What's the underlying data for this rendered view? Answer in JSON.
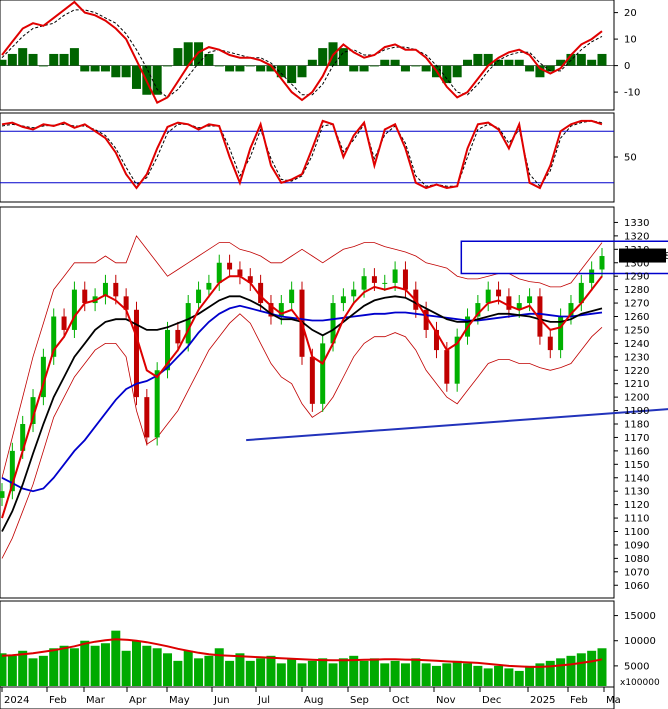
{
  "chart_data": [
    {
      "panel": "MACD",
      "type": "line",
      "yticks": [
        -10,
        0,
        10,
        20
      ],
      "ylim": [
        -16,
        24
      ],
      "series": [],
      "colors": {
        "macd": "#e00000",
        "signal": "#000000",
        "histogram": "#006400"
      },
      "x": [
        0,
        5,
        10,
        15,
        20,
        25,
        30,
        35,
        40,
        45,
        50,
        55,
        60,
        65,
        70,
        75,
        80,
        85,
        90,
        95,
        100,
        105,
        110,
        115,
        120,
        125,
        130,
        135,
        140,
        145,
        150,
        155,
        160,
        165,
        170,
        175,
        180,
        185,
        190,
        195,
        200,
        205,
        210,
        215,
        220,
        225,
        230,
        235,
        240,
        245,
        250,
        255,
        260,
        265,
        270,
        275,
        280,
        285,
        290
      ],
      "macd": [
        4,
        9,
        14,
        16,
        15,
        18,
        21,
        24,
        20,
        19,
        17,
        14,
        10,
        2,
        -6,
        -14,
        -12,
        -6,
        0,
        5,
        7,
        6,
        4,
        3,
        3,
        2,
        0,
        -5,
        -10,
        -13,
        -10,
        -4,
        4,
        8,
        5,
        3,
        4,
        7,
        8,
        6,
        6,
        3,
        -2,
        -8,
        -12,
        -10,
        -5,
        0,
        3,
        5,
        6,
        4,
        -1,
        -3,
        -1,
        4,
        8,
        10,
        13
      ],
      "signal": [
        3,
        7,
        11,
        14,
        15,
        16,
        19,
        21,
        21,
        20,
        18,
        16,
        12,
        6,
        -1,
        -9,
        -12,
        -9,
        -4,
        1,
        5,
        6,
        5,
        4,
        3,
        3,
        1,
        -3,
        -7,
        -11,
        -11,
        -7,
        0,
        5,
        6,
        4,
        4,
        6,
        7,
        7,
        6,
        4,
        0,
        -5,
        -10,
        -11,
        -7,
        -2,
        2,
        4,
        5,
        5,
        1,
        -2,
        -2,
        2,
        6,
        9,
        11
      ]
    },
    {
      "panel": "Stochastic",
      "type": "line",
      "yticks": [
        50
      ],
      "ylim": [
        0,
        100
      ],
      "levels": [
        80,
        20
      ],
      "series": [],
      "colors": {
        "k": "#e00000",
        "d": "#000000",
        "levels": "#0000cc"
      },
      "x": [
        0,
        5,
        10,
        15,
        20,
        25,
        30,
        35,
        40,
        45,
        50,
        55,
        60,
        65,
        70,
        75,
        80,
        85,
        90,
        95,
        100,
        105,
        110,
        115,
        120,
        125,
        130,
        135,
        140,
        145,
        150,
        155,
        160,
        165,
        170,
        175,
        180,
        185,
        190,
        195,
        200,
        205,
        210,
        215,
        220,
        225,
        230,
        235,
        240,
        245,
        250,
        255,
        260,
        265,
        270,
        275,
        280,
        285,
        290
      ],
      "k": [
        88,
        90,
        85,
        82,
        88,
        86,
        90,
        84,
        88,
        80,
        72,
        55,
        30,
        14,
        30,
        60,
        85,
        90,
        88,
        82,
        88,
        86,
        50,
        20,
        60,
        88,
        40,
        20,
        24,
        30,
        60,
        92,
        88,
        50,
        75,
        90,
        40,
        82,
        88,
        60,
        20,
        14,
        18,
        14,
        16,
        60,
        88,
        90,
        82,
        60,
        88,
        20,
        14,
        40,
        80,
        88,
        92,
        92,
        88
      ],
      "d": [
        86,
        88,
        86,
        84,
        86,
        87,
        88,
        86,
        86,
        82,
        75,
        60,
        38,
        18,
        26,
        50,
        78,
        88,
        88,
        84,
        86,
        86,
        60,
        28,
        50,
        82,
        48,
        24,
        22,
        28,
        52,
        86,
        88,
        56,
        70,
        88,
        48,
        76,
        86,
        66,
        28,
        16,
        18,
        16,
        16,
        50,
        82,
        88,
        84,
        66,
        82,
        30,
        16,
        34,
        72,
        86,
        90,
        92,
        90
      ]
    },
    {
      "panel": "Price",
      "type": "candlestick",
      "yticks": [
        1060,
        1070,
        1080,
        1090,
        1100,
        1110,
        1120,
        1130,
        1140,
        1150,
        1160,
        1170,
        1180,
        1190,
        1200,
        1210,
        1220,
        1230,
        1240,
        1250,
        1260,
        1270,
        1280,
        1290,
        1300,
        1310,
        1320,
        1330
      ],
      "ylim": [
        1052,
        1340
      ],
      "last_price_label": "1305.368",
      "last_price": 1305.368,
      "series": [],
      "colors": {
        "up": "#00b000",
        "down": "#c00000",
        "ma_fast": "#dd0000",
        "ma_mid": "#000000",
        "ma_slow": "#0000cc",
        "bands": "#c00000",
        "trend": "#2233bb",
        "box": "#0000cc"
      },
      "x": [
        0,
        5,
        10,
        15,
        20,
        25,
        30,
        35,
        40,
        45,
        50,
        55,
        60,
        65,
        70,
        75,
        80,
        85,
        90,
        95,
        100,
        105,
        110,
        115,
        120,
        125,
        130,
        135,
        140,
        145,
        150,
        155,
        160,
        165,
        170,
        175,
        180,
        185,
        190,
        195,
        200,
        205,
        210,
        215,
        220,
        225,
        230,
        235,
        240,
        245,
        250,
        255,
        260,
        265,
        270,
        275,
        280,
        285,
        290
      ],
      "close": [
        1130,
        1160,
        1180,
        1200,
        1230,
        1260,
        1250,
        1280,
        1270,
        1275,
        1285,
        1275,
        1265,
        1200,
        1170,
        1220,
        1250,
        1240,
        1270,
        1280,
        1285,
        1300,
        1295,
        1290,
        1285,
        1270,
        1260,
        1270,
        1280,
        1230,
        1195,
        1240,
        1270,
        1275,
        1280,
        1290,
        1285,
        1285,
        1295,
        1280,
        1265,
        1250,
        1235,
        1210,
        1245,
        1260,
        1270,
        1280,
        1275,
        1265,
        1270,
        1275,
        1245,
        1235,
        1260,
        1270,
        1285,
        1295,
        1305
      ],
      "ma_fast": [
        1110,
        1135,
        1160,
        1185,
        1210,
        1235,
        1245,
        1260,
        1270,
        1272,
        1276,
        1272,
        1265,
        1245,
        1220,
        1215,
        1225,
        1235,
        1250,
        1265,
        1275,
        1285,
        1290,
        1290,
        1285,
        1275,
        1268,
        1262,
        1265,
        1255,
        1230,
        1225,
        1240,
        1258,
        1270,
        1278,
        1282,
        1280,
        1282,
        1280,
        1272,
        1260,
        1248,
        1235,
        1240,
        1252,
        1262,
        1270,
        1272,
        1268,
        1265,
        1268,
        1258,
        1250,
        1252,
        1262,
        1270,
        1280,
        1290
      ],
      "ma_mid": [
        1100,
        1115,
        1135,
        1158,
        1180,
        1200,
        1215,
        1230,
        1240,
        1250,
        1256,
        1258,
        1258,
        1254,
        1250,
        1250,
        1252,
        1255,
        1258,
        1262,
        1267,
        1272,
        1275,
        1275,
        1272,
        1268,
        1262,
        1258,
        1258,
        1256,
        1250,
        1246,
        1250,
        1256,
        1262,
        1268,
        1272,
        1274,
        1275,
        1274,
        1270,
        1266,
        1262,
        1258,
        1256,
        1256,
        1258,
        1260,
        1262,
        1262,
        1261,
        1260,
        1258,
        1256,
        1256,
        1258,
        1262,
        1264,
        1266
      ],
      "ma_slow": [
        1140,
        1136,
        1132,
        1130,
        1132,
        1140,
        1150,
        1160,
        1168,
        1178,
        1188,
        1198,
        1206,
        1210,
        1212,
        1216,
        1222,
        1230,
        1238,
        1248,
        1256,
        1262,
        1266,
        1268,
        1266,
        1264,
        1262,
        1260,
        1259,
        1258,
        1257,
        1257,
        1258,
        1259,
        1260,
        1261,
        1262,
        1262,
        1263,
        1263,
        1262,
        1261,
        1260,
        1259,
        1258,
        1257,
        1257,
        1258,
        1259,
        1260,
        1261,
        1262,
        1262,
        1261,
        1260,
        1260,
        1261,
        1262,
        1263
      ],
      "band_upper": [
        1140,
        1170,
        1200,
        1230,
        1255,
        1280,
        1290,
        1300,
        1300,
        1300,
        1305,
        1300,
        1300,
        1320,
        1310,
        1300,
        1290,
        1295,
        1300,
        1305,
        1310,
        1315,
        1315,
        1310,
        1308,
        1305,
        1300,
        1300,
        1305,
        1310,
        1305,
        1300,
        1305,
        1310,
        1312,
        1315,
        1315,
        1312,
        1310,
        1308,
        1305,
        1300,
        1298,
        1296,
        1290,
        1288,
        1288,
        1290,
        1292,
        1292,
        1288,
        1286,
        1285,
        1282,
        1282,
        1285,
        1295,
        1305,
        1315
      ],
      "band_lower": [
        1080,
        1095,
        1115,
        1135,
        1160,
        1185,
        1200,
        1215,
        1225,
        1235,
        1240,
        1240,
        1230,
        1190,
        1165,
        1170,
        1180,
        1190,
        1205,
        1220,
        1235,
        1245,
        1255,
        1262,
        1255,
        1240,
        1225,
        1215,
        1210,
        1195,
        1185,
        1190,
        1200,
        1215,
        1230,
        1240,
        1245,
        1245,
        1248,
        1245,
        1235,
        1220,
        1210,
        1200,
        1195,
        1205,
        1215,
        1225,
        1228,
        1228,
        1225,
        1225,
        1222,
        1220,
        1222,
        1225,
        1235,
        1245,
        1252
      ],
      "trendline": {
        "x": [
          118,
          596
        ],
        "y": [
          1168,
          1222
        ]
      },
      "box": {
        "x": [
          222,
          604
        ],
        "y": [
          1292,
          1316
        ]
      }
    },
    {
      "panel": "Volume",
      "type": "bar",
      "unit_label": "x100000",
      "yticks": [
        5000,
        10000,
        15000
      ],
      "ylim": [
        1000,
        17500
      ],
      "xtick_labels": [
        "2024",
        "Feb",
        "Mar",
        "Apr",
        "May",
        "Jun",
        "Jul",
        "Aug",
        "Sep",
        "Oct",
        "Nov",
        "Dec",
        "2025",
        "Feb",
        "Ma"
      ],
      "series": [],
      "colors": {
        "bars": "#00aa00",
        "ma": "#dd0000"
      },
      "x": [
        0,
        5,
        10,
        15,
        20,
        25,
        30,
        35,
        40,
        45,
        50,
        55,
        60,
        65,
        70,
        75,
        80,
        85,
        90,
        95,
        100,
        105,
        110,
        115,
        120,
        125,
        130,
        135,
        140,
        145,
        150,
        155,
        160,
        165,
        170,
        175,
        180,
        185,
        190,
        195,
        200,
        205,
        210,
        215,
        220,
        225,
        230,
        235,
        240,
        245,
        250,
        255,
        260,
        265,
        270,
        275,
        280,
        285,
        290
      ],
      "values": [
        7500,
        7000,
        8000,
        6500,
        7000,
        8500,
        9000,
        8500,
        10000,
        9000,
        9500,
        12000,
        8000,
        10000,
        9000,
        8500,
        7500,
        6000,
        8000,
        6500,
        7000,
        8500,
        6000,
        7500,
        6000,
        6500,
        7000,
        5500,
        6500,
        5500,
        6000,
        6500,
        5500,
        6500,
        7000,
        6000,
        6500,
        5500,
        6000,
        5500,
        6500,
        5500,
        5000,
        5500,
        6000,
        5500,
        5000,
        4500,
        5000,
        4500,
        4000,
        5000,
        5500,
        6000,
        6500,
        7000,
        7500,
        8000,
        8500
      ],
      "ma": [
        7000,
        7100,
        7300,
        7500,
        7800,
        8100,
        8500,
        8900,
        9400,
        9800,
        10100,
        10300,
        10200,
        10000,
        9700,
        9300,
        8900,
        8400,
        8000,
        7600,
        7300,
        7100,
        7000,
        6900,
        6800,
        6700,
        6600,
        6500,
        6400,
        6300,
        6200,
        6150,
        6100,
        6100,
        6150,
        6200,
        6250,
        6300,
        6300,
        6250,
        6200,
        6100,
        6000,
        5900,
        5800,
        5700,
        5600,
        5400,
        5200,
        5000,
        4900,
        4800,
        4800,
        4900,
        5100,
        5300,
        5600,
        5900,
        6300
      ]
    }
  ]
}
